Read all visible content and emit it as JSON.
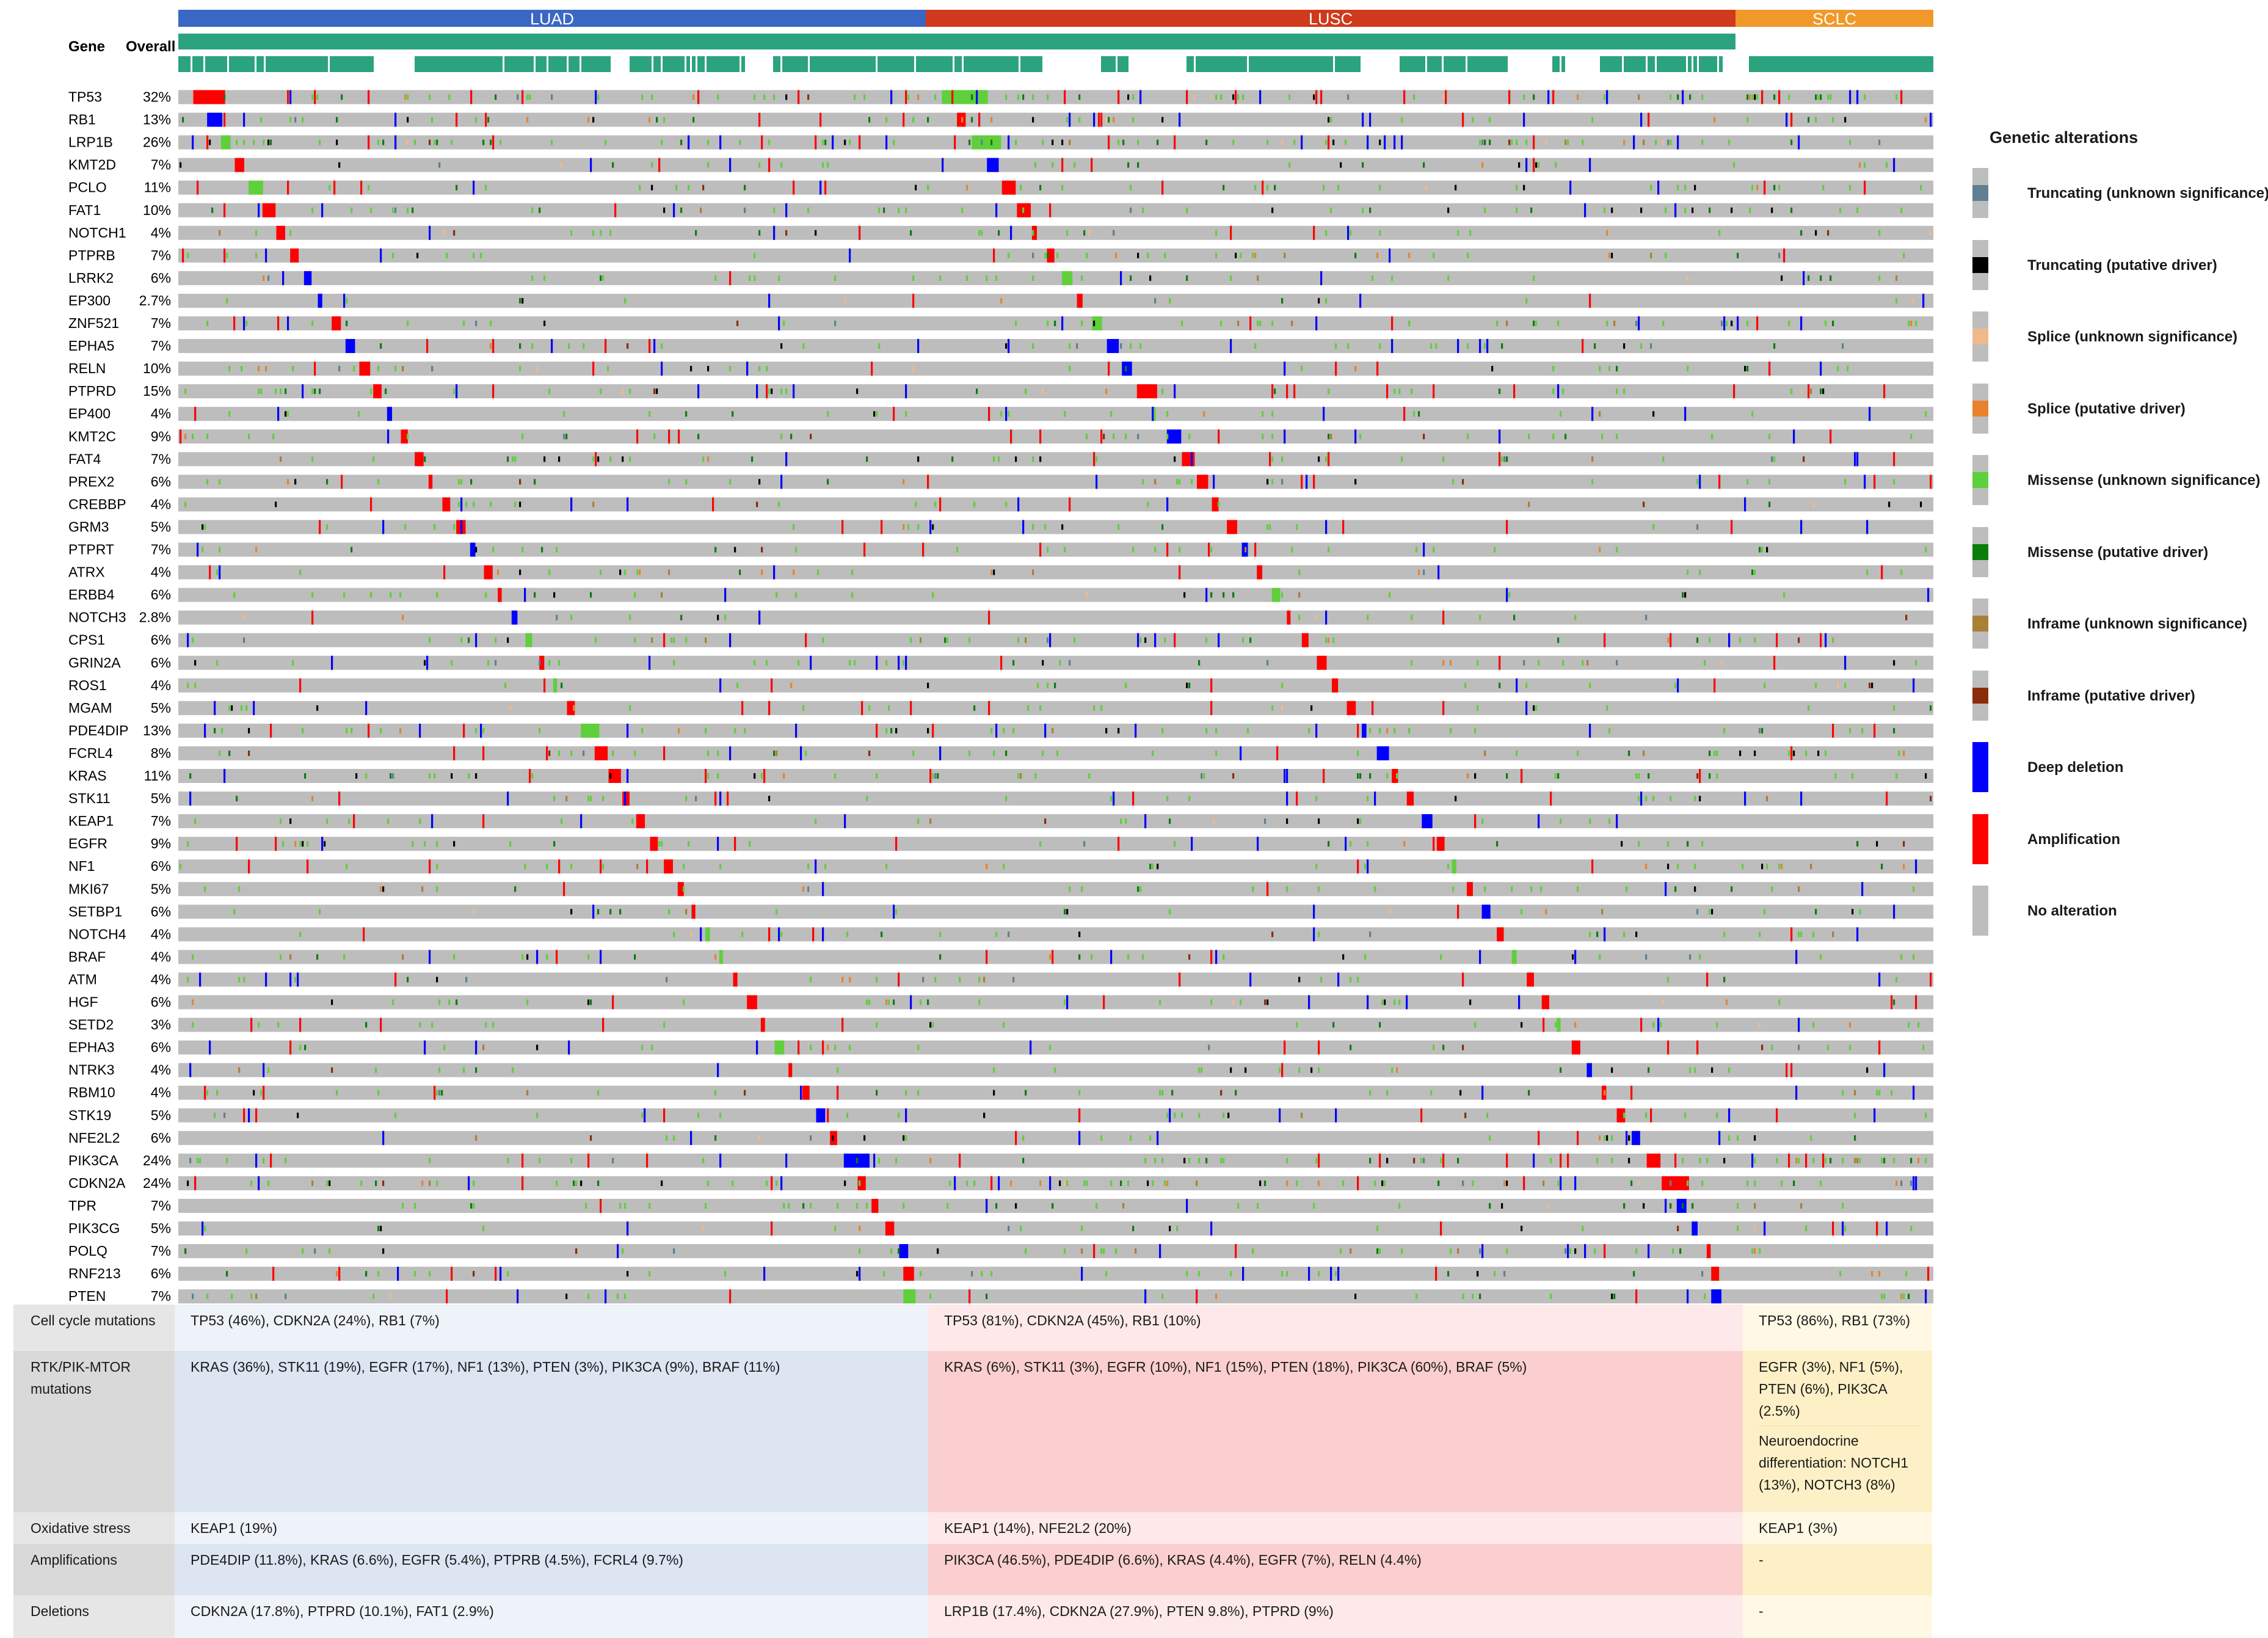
{
  "chart_data": {
    "type": "heatmap",
    "subtype": "oncoprint",
    "header_labels": {
      "gene": "Gene",
      "overall": "Overall"
    },
    "cohorts": [
      {
        "name": "LUAD",
        "color": "#3a67c4"
      },
      {
        "name": "LUSC",
        "color": "#cf3a1c"
      },
      {
        "name": "SCLC",
        "color": "#f0992a"
      }
    ],
    "clinical_track_color": "#2aa37e",
    "genes": [
      {
        "gene": "TP53",
        "overall": "32%"
      },
      {
        "gene": "RB1",
        "overall": "13%"
      },
      {
        "gene": "LRP1B",
        "overall": "26%"
      },
      {
        "gene": "KMT2D",
        "overall": "7%"
      },
      {
        "gene": "PCLO",
        "overall": "11%"
      },
      {
        "gene": "FAT1",
        "overall": "10%"
      },
      {
        "gene": "NOTCH1",
        "overall": "4%"
      },
      {
        "gene": "PTPRB",
        "overall": "7%"
      },
      {
        "gene": "LRRK2",
        "overall": "6%"
      },
      {
        "gene": "EP300",
        "overall": "2.7%"
      },
      {
        "gene": "ZNF521",
        "overall": "7%"
      },
      {
        "gene": "EPHA5",
        "overall": "7%"
      },
      {
        "gene": "RELN",
        "overall": "10%"
      },
      {
        "gene": "PTPRD",
        "overall": "15%"
      },
      {
        "gene": "EP400",
        "overall": "4%"
      },
      {
        "gene": "KMT2C",
        "overall": "9%"
      },
      {
        "gene": "FAT4",
        "overall": "7%"
      },
      {
        "gene": "PREX2",
        "overall": "6%"
      },
      {
        "gene": "CREBBP",
        "overall": "4%"
      },
      {
        "gene": "GRM3",
        "overall": "5%"
      },
      {
        "gene": "PTPRT",
        "overall": "7%"
      },
      {
        "gene": "ATRX",
        "overall": "4%"
      },
      {
        "gene": "ERBB4",
        "overall": "6%"
      },
      {
        "gene": "NOTCH3",
        "overall": "2.8%"
      },
      {
        "gene": "CPS1",
        "overall": "6%"
      },
      {
        "gene": "GRIN2A",
        "overall": "6%"
      },
      {
        "gene": "ROS1",
        "overall": "4%"
      },
      {
        "gene": "MGAM",
        "overall": "5%"
      },
      {
        "gene": "PDE4DIP",
        "overall": "13%"
      },
      {
        "gene": "FCRL4",
        "overall": "8%"
      },
      {
        "gene": "KRAS",
        "overall": "11%"
      },
      {
        "gene": "STK11",
        "overall": "5%"
      },
      {
        "gene": "KEAP1",
        "overall": "7%"
      },
      {
        "gene": "EGFR",
        "overall": "9%"
      },
      {
        "gene": "NF1",
        "overall": "6%"
      },
      {
        "gene": "MKI67",
        "overall": "5%"
      },
      {
        "gene": "SETBP1",
        "overall": "6%"
      },
      {
        "gene": "NOTCH4",
        "overall": "4%"
      },
      {
        "gene": "BRAF",
        "overall": "4%"
      },
      {
        "gene": "ATM",
        "overall": "4%"
      },
      {
        "gene": "HGF",
        "overall": "6%"
      },
      {
        "gene": "SETD2",
        "overall": "3%"
      },
      {
        "gene": "EPHA3",
        "overall": "6%"
      },
      {
        "gene": "NTRK3",
        "overall": "4%"
      },
      {
        "gene": "RBM10",
        "overall": "4%"
      },
      {
        "gene": "STK19",
        "overall": "5%"
      },
      {
        "gene": "NFE2L2",
        "overall": "6%"
      },
      {
        "gene": "PIK3CA",
        "overall": "24%"
      },
      {
        "gene": "CDKN2A",
        "overall": "24%"
      },
      {
        "gene": "TPR",
        "overall": "7%"
      },
      {
        "gene": "PIK3CG",
        "overall": "5%"
      },
      {
        "gene": "POLQ",
        "overall": "7%"
      },
      {
        "gene": "RNF213",
        "overall": "6%"
      },
      {
        "gene": "PTEN",
        "overall": "7%"
      }
    ],
    "legend": {
      "title": "Genetic alterations",
      "items": [
        {
          "label": "Truncating (unknown significance)",
          "color": "#5f7f94"
        },
        {
          "label": "Truncating (putative driver)",
          "color": "#000000"
        },
        {
          "label": "Splice (unknown significance)",
          "color": "#f0b98c"
        },
        {
          "label": "Splice (putative driver)",
          "color": "#e8832d"
        },
        {
          "label": "Missense (unknown significance)",
          "color": "#5fd03b"
        },
        {
          "label": "Missense (putative driver)",
          "color": "#0b7d0b"
        },
        {
          "label": "Inframe (unknown significance)",
          "color": "#a98035"
        },
        {
          "label": "Inframe (putative driver)",
          "color": "#8b2b0b"
        },
        {
          "label": "Deep deletion",
          "color": "#0000ff"
        },
        {
          "label": "Amplification",
          "color": "#ff0000"
        },
        {
          "label": "No alteration",
          "color": "#bdbdbd"
        }
      ]
    }
  },
  "pathways": [
    {
      "category": "Cell cycle mutations",
      "luad": "TP53 (46%), CDKN2A (24%), RB1 (7%)",
      "lusc": "TP53 (81%), CDKN2A (45%), RB1 (10%)",
      "sclc": "TP53 (86%), RB1 (73%)",
      "sclc_extra": ""
    },
    {
      "category": "RTK/PIK-MTOR mutations",
      "luad": "KRAS (36%), STK11 (19%), EGFR (17%), NF1 (13%), PTEN (3%), PIK3CA (9%), BRAF (11%)",
      "lusc": "KRAS (6%), STK11 (3%), EGFR (10%), NF1 (15%), PTEN (18%), PIK3CA (60%), BRAF (5%)",
      "sclc": "EGFR (3%), NF1 (5%), PTEN (6%), PIK3CA (2.5%)",
      "sclc_extra": "Neuroendocrine differentiation: NOTCH1 (13%), NOTCH3 (8%)"
    },
    {
      "category": "Oxidative stress",
      "luad": "KEAP1 (19%)",
      "lusc": "KEAP1 (14%), NFE2L2 (20%)",
      "sclc": "KEAP1 (3%)",
      "sclc_extra": ""
    },
    {
      "category": "Amplifications",
      "luad": "PDE4DIP (11.8%), KRAS (6.6%), EGFR (5.4%), PTPRB (4.5%), FCRL4 (9.7%)",
      "lusc": "PIK3CA (46.5%), PDE4DIP (6.6%), KRAS (4.4%), EGFR (7%), RELN (4.4%)",
      "sclc": "-",
      "sclc_extra": ""
    },
    {
      "category": "Deletions",
      "luad": "CDKN2A (17.8%), PTPRD (10.1%), FAT1 (2.9%)",
      "lusc": "LRP1B (17.4%), CDKN2A (27.9%), PTEN 9.8%), PTPRD (9%)",
      "sclc": "-",
      "sclc_extra": ""
    }
  ]
}
